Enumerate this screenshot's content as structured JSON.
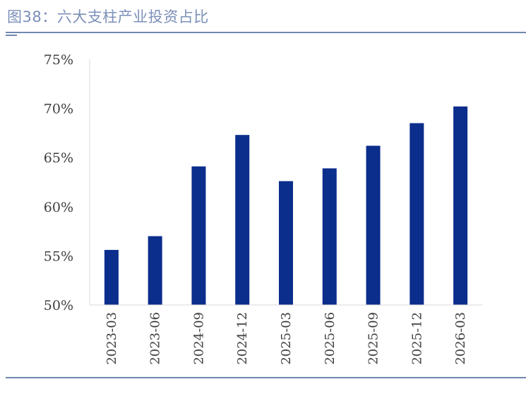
{
  "figure": {
    "title": "图38：六大支柱产业投资占比"
  },
  "colors": {
    "bar": "#0b2d8c",
    "axis": "#d9d9d9",
    "rule": "#7186b0",
    "text": "#404040"
  },
  "chart_data": {
    "type": "bar",
    "title": "",
    "xlabel": "",
    "ylabel": "",
    "ylim": [
      50,
      75
    ],
    "yticks": [
      "75%",
      "70%",
      "65%",
      "60%",
      "55%",
      "50%"
    ],
    "ytick_values": [
      75,
      70,
      65,
      60,
      55,
      50
    ],
    "categories": [
      "2023-03",
      "2023-06",
      "2024-09",
      "2024-12",
      "2025-03",
      "2025-06",
      "2025-09",
      "2025-12",
      "2026-03"
    ],
    "values": [
      55.6,
      57.0,
      64.1,
      67.3,
      62.6,
      63.9,
      66.2,
      68.5,
      70.2
    ],
    "grid": false,
    "legend": "none"
  }
}
